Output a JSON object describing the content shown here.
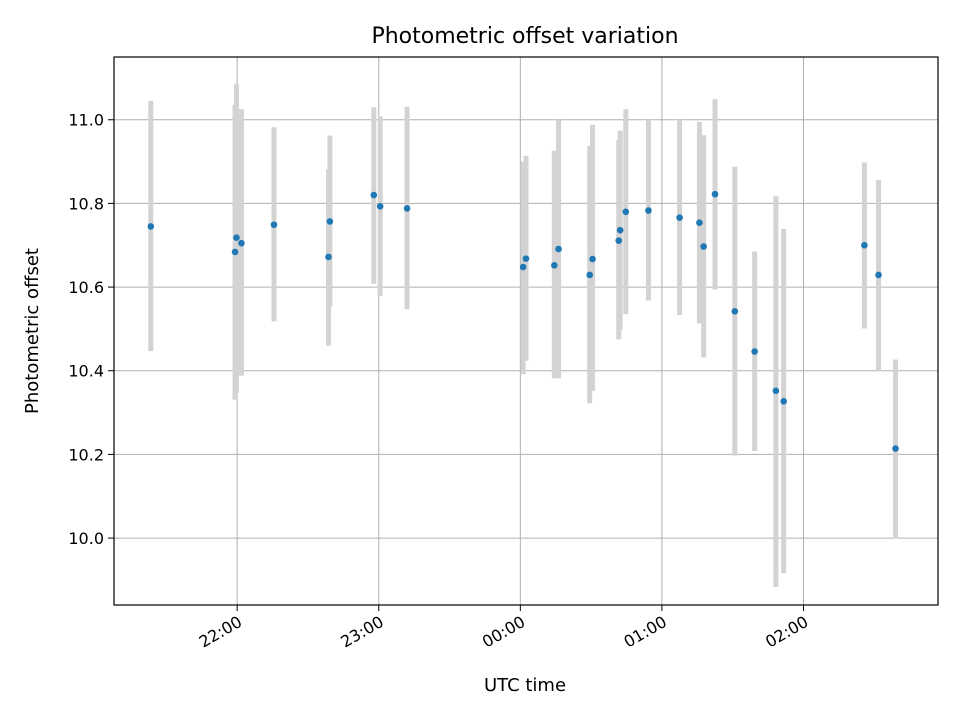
{
  "chart_data": {
    "type": "scatter",
    "title": "Photometric offset variation",
    "xlabel": "UTC time",
    "ylabel": "Photometric offset",
    "grid": true,
    "x_unit": "hours, UTC (elapsed since 21:00; values ≥ 24 fall after midnight)",
    "xlim": [
      21.13,
      26.95
    ],
    "ylim": [
      9.84,
      11.15
    ],
    "x_ticks": [
      {
        "value": 22.0,
        "label": "22:00"
      },
      {
        "value": 23.0,
        "label": "23:00"
      },
      {
        "value": 24.0,
        "label": "00:00"
      },
      {
        "value": 25.0,
        "label": "01:00"
      },
      {
        "value": 26.0,
        "label": "02:00"
      }
    ],
    "y_ticks": [
      {
        "value": 10.0,
        "label": "10.0"
      },
      {
        "value": 10.2,
        "label": "10.2"
      },
      {
        "value": 10.4,
        "label": "10.4"
      },
      {
        "value": 10.6,
        "label": "10.6"
      },
      {
        "value": 10.8,
        "label": "10.8"
      },
      {
        "value": 11.0,
        "label": "11.0"
      }
    ],
    "colors": {
      "point": "#1f77b4",
      "errorbar": "#d3d3d3",
      "grid": "#b0b0b0"
    },
    "points": [
      {
        "x": 21.39,
        "y": 10.745,
        "ylow": 10.447,
        "yhigh": 11.045
      },
      {
        "x": 21.985,
        "y": 10.684,
        "ylow": 10.331,
        "yhigh": 11.036
      },
      {
        "x": 21.995,
        "y": 10.718,
        "ylow": 10.347,
        "yhigh": 11.085
      },
      {
        "x": 22.03,
        "y": 10.705,
        "ylow": 10.388,
        "yhigh": 11.025
      },
      {
        "x": 22.26,
        "y": 10.749,
        "ylow": 10.518,
        "yhigh": 10.982
      },
      {
        "x": 22.645,
        "y": 10.672,
        "ylow": 10.46,
        "yhigh": 10.882
      },
      {
        "x": 22.655,
        "y": 10.757,
        "ylow": 10.552,
        "yhigh": 10.962
      },
      {
        "x": 22.965,
        "y": 10.82,
        "ylow": 10.608,
        "yhigh": 11.03
      },
      {
        "x": 23.01,
        "y": 10.793,
        "ylow": 10.579,
        "yhigh": 11.008
      },
      {
        "x": 23.2,
        "y": 10.788,
        "ylow": 10.547,
        "yhigh": 11.031
      },
      {
        "x": 24.02,
        "y": 10.648,
        "ylow": 10.392,
        "yhigh": 10.9
      },
      {
        "x": 24.04,
        "y": 10.668,
        "ylow": 10.424,
        "yhigh": 10.914
      },
      {
        "x": 24.24,
        "y": 10.652,
        "ylow": 10.382,
        "yhigh": 10.926
      },
      {
        "x": 24.27,
        "y": 10.691,
        "ylow": 10.382,
        "yhigh": 11.0
      },
      {
        "x": 24.49,
        "y": 10.629,
        "ylow": 10.322,
        "yhigh": 10.937
      },
      {
        "x": 24.51,
        "y": 10.667,
        "ylow": 10.352,
        "yhigh": 10.988
      },
      {
        "x": 24.695,
        "y": 10.711,
        "ylow": 10.475,
        "yhigh": 10.952
      },
      {
        "x": 24.705,
        "y": 10.736,
        "ylow": 10.498,
        "yhigh": 10.974
      },
      {
        "x": 24.745,
        "y": 10.78,
        "ylow": 10.535,
        "yhigh": 11.025
      },
      {
        "x": 24.905,
        "y": 10.783,
        "ylow": 10.568,
        "yhigh": 11.0
      },
      {
        "x": 25.125,
        "y": 10.766,
        "ylow": 10.533,
        "yhigh": 11.0
      },
      {
        "x": 25.265,
        "y": 10.754,
        "ylow": 10.513,
        "yhigh": 10.995
      },
      {
        "x": 25.295,
        "y": 10.697,
        "ylow": 10.432,
        "yhigh": 10.963
      },
      {
        "x": 25.375,
        "y": 10.822,
        "ylow": 10.594,
        "yhigh": 11.049
      },
      {
        "x": 25.515,
        "y": 10.542,
        "ylow": 10.197,
        "yhigh": 10.888
      },
      {
        "x": 25.655,
        "y": 10.446,
        "ylow": 10.208,
        "yhigh": 10.685
      },
      {
        "x": 25.805,
        "y": 10.352,
        "ylow": 9.883,
        "yhigh": 10.817
      },
      {
        "x": 25.86,
        "y": 10.327,
        "ylow": 9.916,
        "yhigh": 10.739
      },
      {
        "x": 26.43,
        "y": 10.7,
        "ylow": 10.501,
        "yhigh": 10.898
      },
      {
        "x": 26.53,
        "y": 10.629,
        "ylow": 10.399,
        "yhigh": 10.856
      },
      {
        "x": 26.65,
        "y": 10.214,
        "ylow": 9.999,
        "yhigh": 10.427
      }
    ]
  }
}
